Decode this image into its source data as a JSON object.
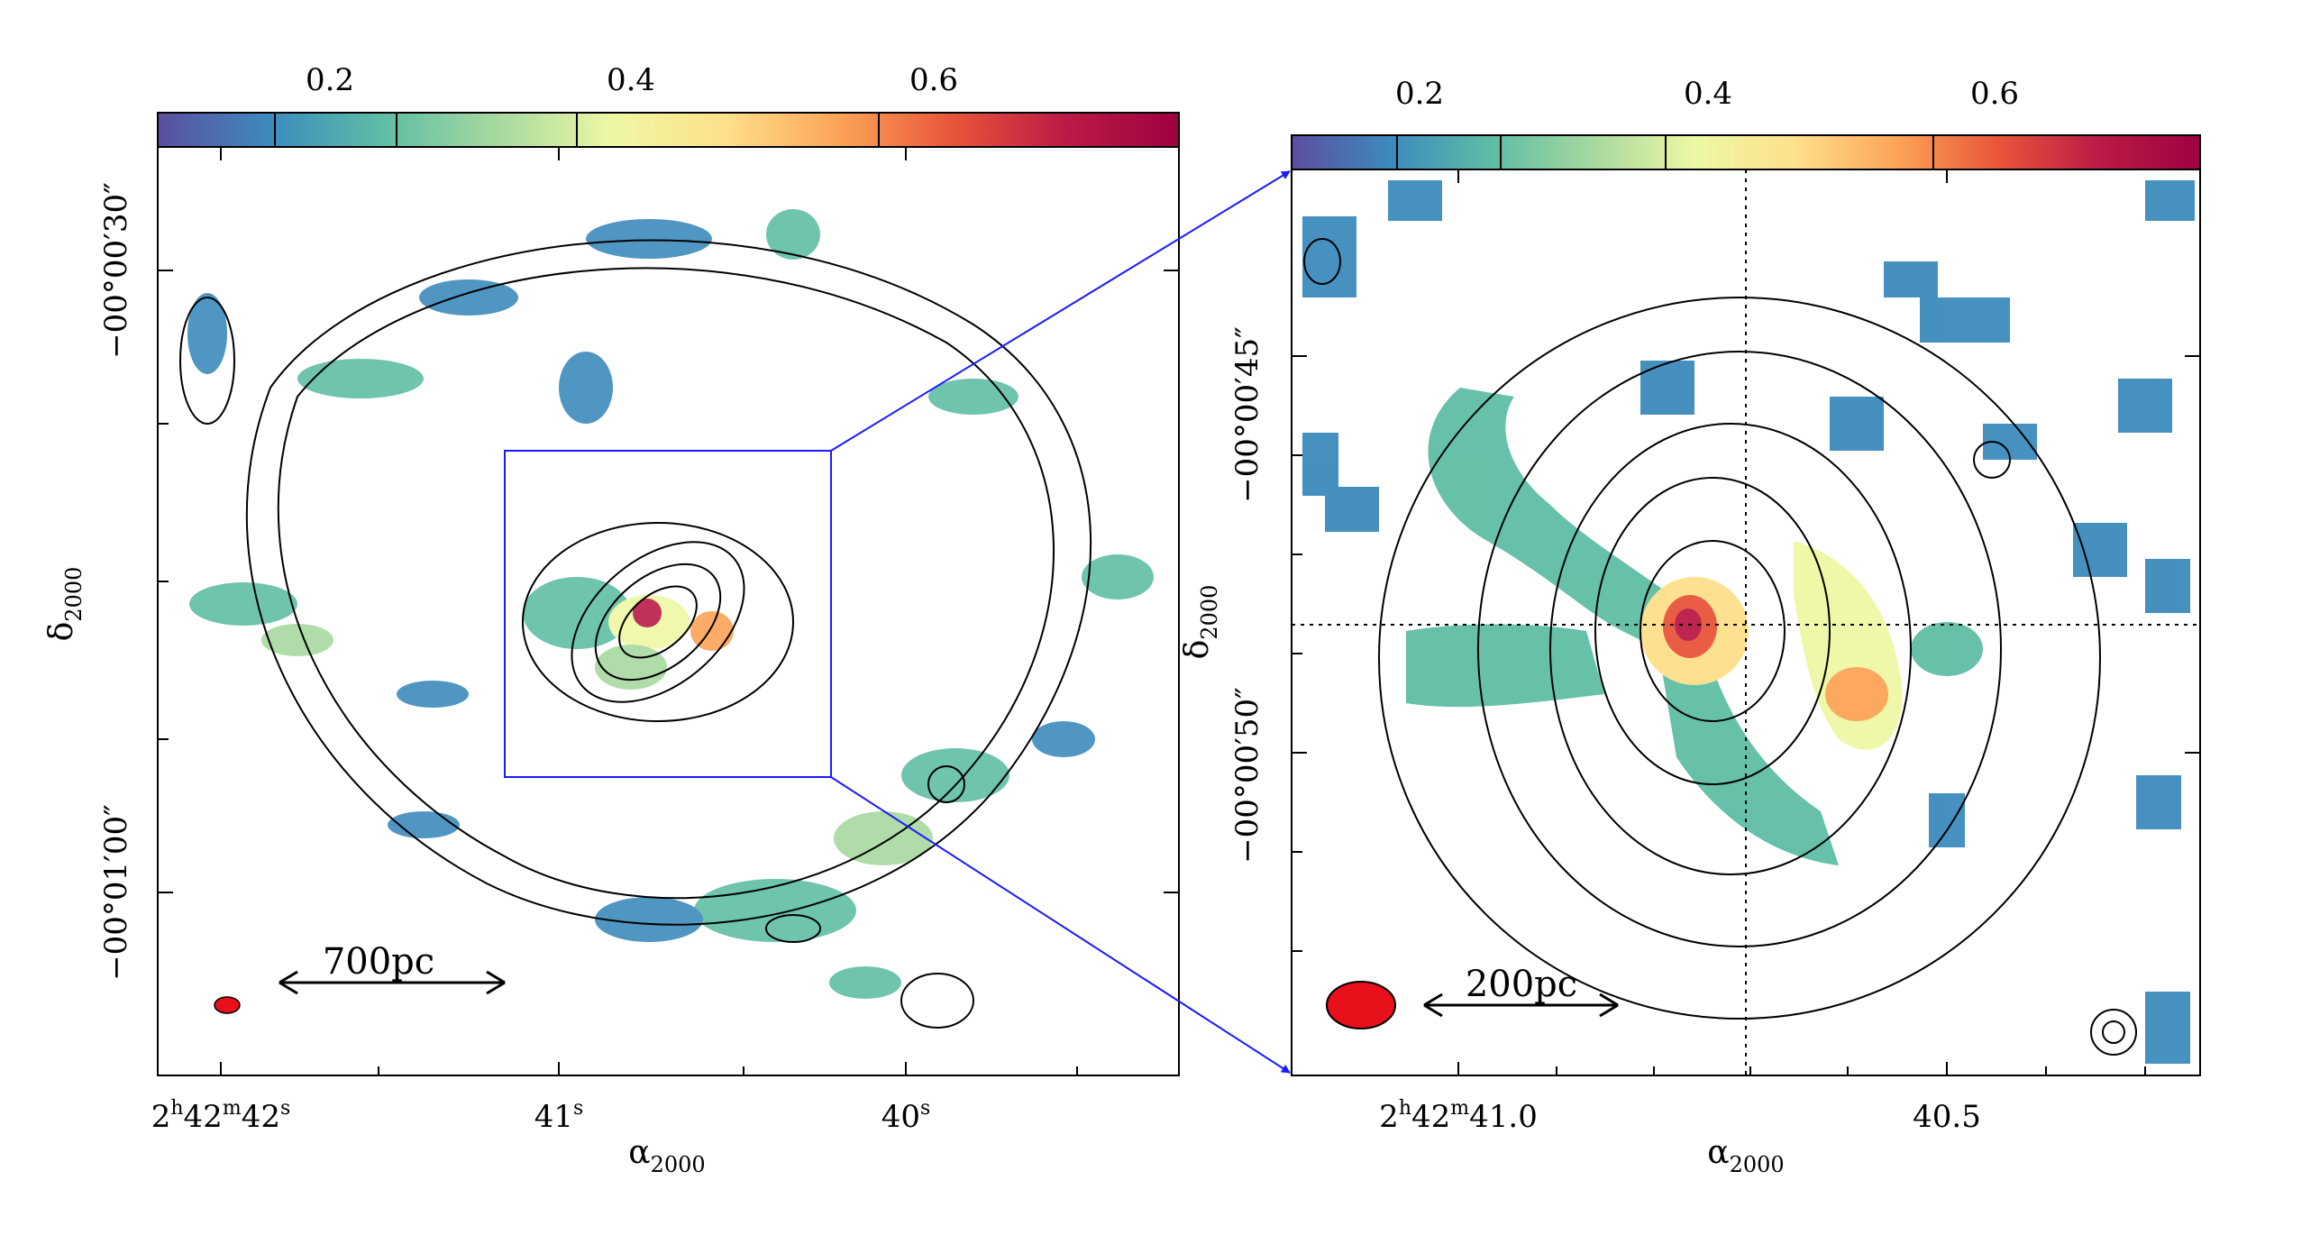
{
  "colormap": {
    "colors": [
      "#5b4ea1",
      "#3d8bbd",
      "#5fbea5",
      "#a7d99f",
      "#eef8a4",
      "#fee08b",
      "#fca457",
      "#e8553a",
      "#ba1b45",
      "#9e0142"
    ]
  },
  "left_panel": {
    "colorbar_ticks": [
      "0.2",
      "0.4",
      "0.6"
    ],
    "ra": {
      "label": "α",
      "label_sub": "2000",
      "ticks": [
        {
          "h": "2",
          "m": "42",
          "s": "42"
        },
        {
          "s": "41"
        },
        {
          "s": "40"
        }
      ]
    },
    "dec": {
      "label": "δ",
      "label_sub": "2000",
      "ticks": [
        "−00°00′30″",
        "−00°01′00″"
      ]
    },
    "scalebar": "700pc",
    "beam_color": "#e8101a"
  },
  "right_panel": {
    "colorbar_ticks": [
      "0.2",
      "0.4",
      "0.6"
    ],
    "ra": {
      "label": "α",
      "label_sub": "2000",
      "ticks": [
        {
          "h": "2",
          "m": "42",
          "s": "41.0"
        },
        {
          "s": "40.5"
        }
      ]
    },
    "dec": {
      "label": "δ",
      "label_sub": "2000",
      "ticks": [
        "−00°00′45″",
        "−00°00′50″"
      ]
    },
    "scalebar": "200pc",
    "beam_color": "#e8101a"
  },
  "zoom_connector_color": "#1a1aff"
}
